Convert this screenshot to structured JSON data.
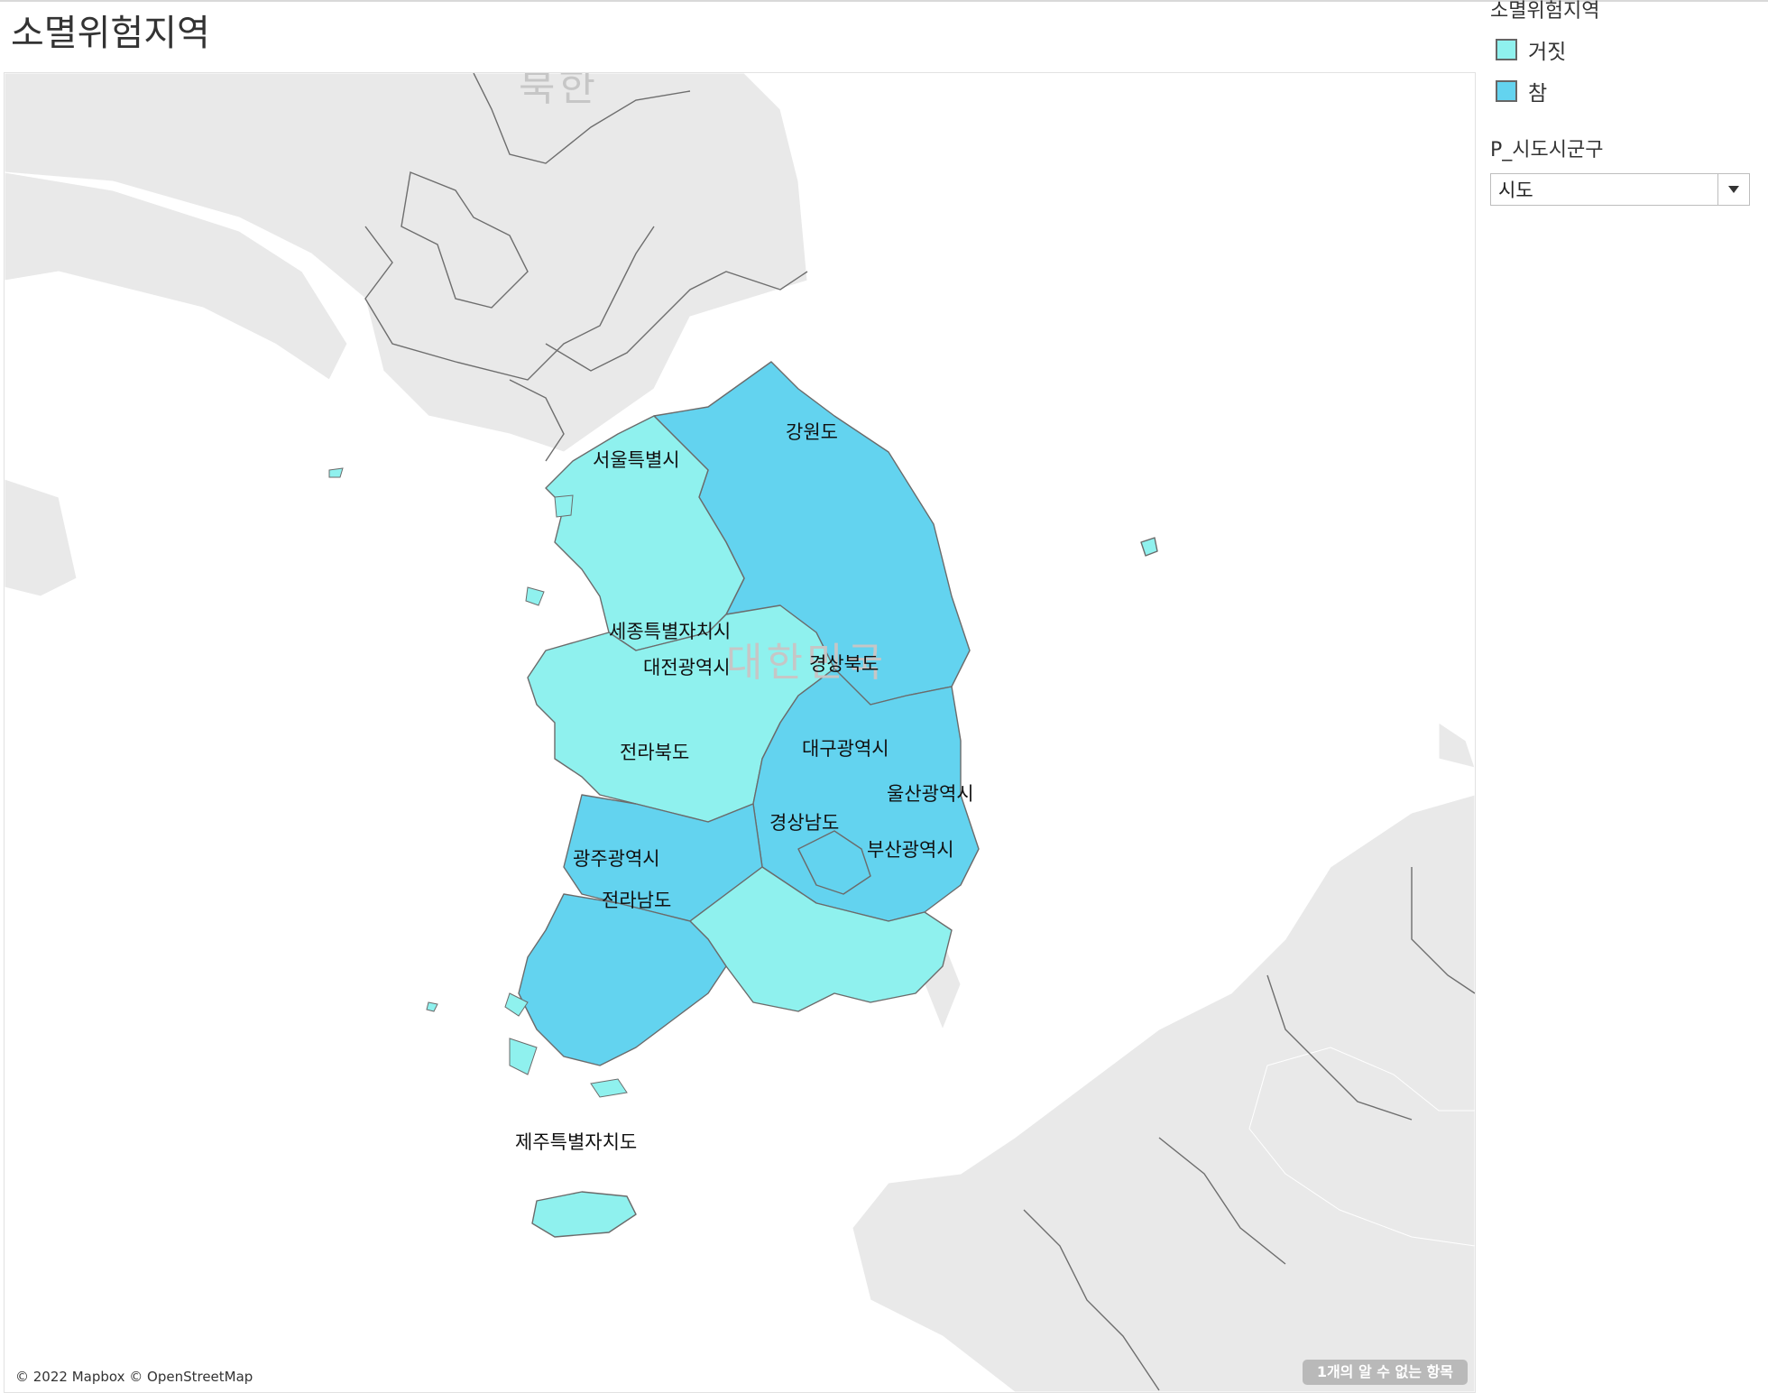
{
  "page": {
    "title": "소멸위험지역"
  },
  "legend": {
    "title": "소멸위험지역",
    "items": [
      {
        "label": "거짓",
        "color": "#8ff1ee"
      },
      {
        "label": "참",
        "color": "#63d3ef"
      }
    ]
  },
  "filter": {
    "title": "P_시도시군구",
    "selected": "시도"
  },
  "map": {
    "background_labels": {
      "north_korea": "북한",
      "country": "대한민국"
    },
    "regions": [
      {
        "name": "서울특별시",
        "at_risk": false
      },
      {
        "name": "강원도",
        "at_risk": true
      },
      {
        "name": "세종특별자치시",
        "at_risk": false
      },
      {
        "name": "대전광역시",
        "at_risk": false
      },
      {
        "name": "경상북도",
        "at_risk": true
      },
      {
        "name": "전라북도",
        "at_risk": true
      },
      {
        "name": "대구광역시",
        "at_risk": true
      },
      {
        "name": "울산광역시",
        "at_risk": false
      },
      {
        "name": "경상남도",
        "at_risk": false
      },
      {
        "name": "부산광역시",
        "at_risk": false
      },
      {
        "name": "광주광역시",
        "at_risk": true
      },
      {
        "name": "전라남도",
        "at_risk": true
      },
      {
        "name": "제주특별자치도",
        "at_risk": false
      }
    ],
    "colors": {
      "land": "#e9e9e9",
      "border": "#7a7a7a",
      "water": "#ffffff"
    },
    "attribution": "© 2022 Mapbox © OpenStreetMap",
    "unknown_badge": "1개의 알 수 없는 항목"
  }
}
